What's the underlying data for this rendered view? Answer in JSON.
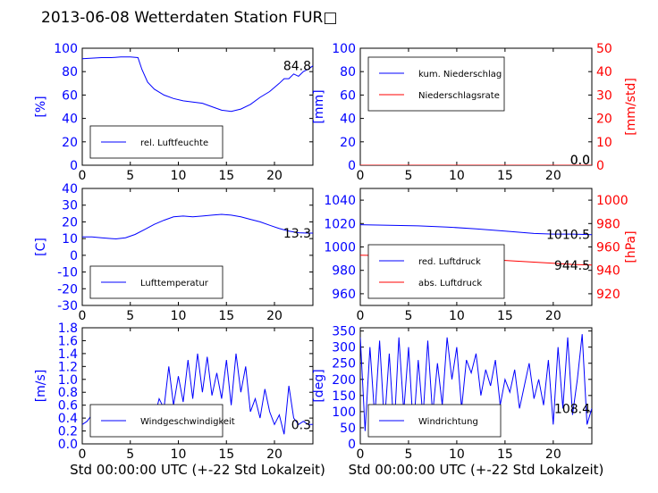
{
  "title": "2013-06-08 Wetterdaten Station FUR□",
  "colors": {
    "primary": "#0000ff",
    "secondary": "#ff0000",
    "axis": "#000000"
  },
  "chart_data": [
    {
      "id": "humidity",
      "type": "line",
      "ylabel": "[%]",
      "xlabel": "",
      "xlim": [
        0,
        24
      ],
      "ylim": [
        0,
        100
      ],
      "xticks": [
        0,
        5,
        10,
        15,
        20
      ],
      "yticks": [
        0,
        20,
        40,
        60,
        80,
        100
      ],
      "last_value_label": "84.8",
      "legend_position": "lower-left",
      "series": [
        {
          "name": "rel. Luftfeuchte",
          "x": [
            0,
            1,
            2,
            3,
            4,
            5,
            5.8,
            6.2,
            6.8,
            7.5,
            8.5,
            9.5,
            10.5,
            11.5,
            12.5,
            13.5,
            14.5,
            15.5,
            16.5,
            17.5,
            18.5,
            19.5,
            20.5,
            21,
            21.5,
            22,
            22.5,
            23,
            23.5,
            24
          ],
          "y": [
            91,
            91.5,
            92,
            92,
            92.5,
            92.5,
            92,
            82,
            71,
            65,
            60,
            57,
            55,
            54,
            53,
            50,
            47,
            46,
            48,
            52,
            58,
            63,
            70,
            74,
            74,
            78,
            76,
            80,
            82,
            85
          ]
        }
      ]
    },
    {
      "id": "precipitation",
      "type": "line",
      "ylabel": "[mm]",
      "y2label": "[mm/std]",
      "xlabel": "",
      "xlim": [
        0,
        24
      ],
      "ylim": [
        0,
        100
      ],
      "y2lim": [
        0,
        50
      ],
      "xticks": [
        0,
        5,
        10,
        15,
        20
      ],
      "yticks": [
        0,
        20,
        40,
        60,
        80,
        100
      ],
      "y2ticks": [
        0,
        10,
        20,
        30,
        40,
        50
      ],
      "last_value_labels": [
        "0.0",
        "0.0"
      ],
      "legend_position": "upper-left",
      "series": [
        {
          "name": "kum. Niederschlag",
          "axis": "left",
          "x": [
            0,
            24
          ],
          "y": [
            0,
            0
          ]
        },
        {
          "name": "Niederschlagsrate",
          "axis": "right",
          "x": [
            0,
            24
          ],
          "y": [
            0,
            0
          ]
        }
      ]
    },
    {
      "id": "temperature",
      "type": "line",
      "ylabel": "[C]",
      "xlabel": "",
      "xlim": [
        0,
        24
      ],
      "ylim": [
        -30,
        40
      ],
      "xticks": [
        0,
        5,
        10,
        15,
        20
      ],
      "yticks": [
        -30,
        -20,
        -10,
        0,
        10,
        20,
        30,
        40
      ],
      "last_value_label": "13.3",
      "legend_position": "lower-left",
      "series": [
        {
          "name": "Lufttemperatur",
          "x": [
            0,
            1,
            2,
            3,
            3.5,
            4.5,
            5.5,
            6.5,
            7.5,
            8.5,
            9.5,
            10.5,
            11.5,
            12.5,
            13.5,
            14.5,
            15.5,
            16.5,
            17.5,
            18.5,
            19.5,
            20.5,
            21.5,
            22.5,
            23.5,
            24
          ],
          "y": [
            11,
            11,
            10.5,
            10,
            9.8,
            10.5,
            12.5,
            15.5,
            18.5,
            21,
            23,
            23.5,
            23,
            23.5,
            24,
            24.5,
            24,
            23,
            21.5,
            20,
            18,
            16,
            14.5,
            13.5,
            13.3,
            13.3
          ]
        }
      ]
    },
    {
      "id": "pressure",
      "type": "line",
      "ylabel": "",
      "y2label": "[hPa]",
      "xlabel": "",
      "xlim": [
        0,
        24
      ],
      "ylim": [
        950,
        1050
      ],
      "y2lim": [
        910,
        1010
      ],
      "xticks": [
        0,
        5,
        10,
        15,
        20
      ],
      "yticks": [
        960,
        980,
        1000,
        1020,
        1040
      ],
      "y2ticks": [
        920,
        940,
        960,
        980,
        1000
      ],
      "last_value_labels": [
        "1010.5",
        "944.5"
      ],
      "legend_position": "lower-left",
      "series": [
        {
          "name": "red. Luftdruck",
          "axis": "left",
          "x": [
            0,
            3,
            6,
            9,
            12,
            15,
            18,
            20,
            22,
            24
          ],
          "y": [
            1019,
            1018.5,
            1018,
            1017,
            1015.5,
            1013.5,
            1011.5,
            1011,
            1011,
            1010.5
          ]
        },
        {
          "name": "abs. Luftdruck",
          "axis": "right",
          "x": [
            0,
            3,
            6,
            9,
            12,
            15,
            18,
            20,
            22,
            24
          ],
          "y": [
            953,
            952.5,
            952,
            951.5,
            950,
            948.5,
            947,
            946,
            945,
            944.5
          ]
        }
      ]
    },
    {
      "id": "windspeed",
      "type": "line",
      "ylabel": "[m/s]",
      "xlabel": "Std 00:00:00 UTC (+-22 Std Lokalzeit)",
      "xlim": [
        0,
        24
      ],
      "ylim": [
        0,
        1.8
      ],
      "xticks": [
        0,
        5,
        10,
        15,
        20
      ],
      "yticks": [
        0.0,
        0.2,
        0.4,
        0.6,
        0.8,
        1.0,
        1.2,
        1.4,
        1.6,
        1.8
      ],
      "last_value_label": "0.3",
      "legend_position": "lower-left",
      "series": [
        {
          "name": "Windgeschwindigkeit",
          "x": [
            0,
            0.5,
            1,
            1.5,
            2,
            2.5,
            3,
            3.5,
            4,
            4.5,
            5,
            5.5,
            6,
            6.5,
            7,
            7.5,
            8,
            8.5,
            9,
            9.5,
            10,
            10.5,
            11,
            11.5,
            12,
            12.5,
            13,
            13.5,
            14,
            14.5,
            15,
            15.5,
            16,
            16.5,
            17,
            17.5,
            18,
            18.5,
            19,
            19.5,
            20,
            20.5,
            21,
            21.5,
            22,
            22.5,
            23,
            23.5,
            24
          ],
          "y": [
            0.3,
            0.35,
            0.45,
            0.3,
            0.4,
            0.35,
            0.5,
            0.3,
            0.45,
            0.35,
            0.4,
            0.2,
            0.45,
            0.35,
            0.5,
            0.4,
            0.7,
            0.55,
            1.2,
            0.6,
            1.05,
            0.65,
            1.3,
            0.7,
            1.4,
            0.8,
            1.35,
            0.75,
            1.1,
            0.7,
            1.3,
            0.6,
            1.4,
            0.8,
            1.2,
            0.5,
            0.7,
            0.4,
            0.85,
            0.5,
            0.3,
            0.45,
            0.15,
            0.9,
            0.4,
            0.3,
            0.35,
            0.3,
            0.3
          ]
        }
      ]
    },
    {
      "id": "winddirection",
      "type": "line",
      "ylabel": "[deg]",
      "xlabel": "Std 00:00:00 UTC (+-22 Std Lokalzeit)",
      "xlim": [
        0,
        24
      ],
      "ylim": [
        0,
        360
      ],
      "xticks": [
        0,
        5,
        10,
        15,
        20
      ],
      "yticks": [
        0,
        50,
        100,
        150,
        200,
        250,
        300,
        350
      ],
      "last_value_label": "108.4",
      "legend_position": "lower-left",
      "series": [
        {
          "name": "Windrichtung",
          "x": [
            0,
            0.5,
            1,
            1.5,
            2,
            2.5,
            3,
            3.5,
            4,
            4.5,
            5,
            5.5,
            6,
            6.5,
            7,
            7.5,
            8,
            8.5,
            9,
            9.5,
            10,
            10.5,
            11,
            11.5,
            12,
            12.5,
            13,
            13.5,
            14,
            14.5,
            15,
            15.5,
            16,
            16.5,
            17,
            17.5,
            18,
            18.5,
            19,
            19.5,
            20,
            20.5,
            21,
            21.5,
            22,
            22.5,
            23,
            23.5,
            24
          ],
          "y": [
            330,
            40,
            300,
            80,
            320,
            60,
            280,
            40,
            330,
            100,
            300,
            40,
            260,
            80,
            320,
            90,
            250,
            120,
            330,
            200,
            300,
            110,
            260,
            220,
            280,
            150,
            230,
            180,
            260,
            120,
            200,
            160,
            230,
            110,
            180,
            250,
            140,
            200,
            120,
            260,
            60,
            300,
            110,
            330,
            90,
            200,
            340,
            60,
            110
          ]
        }
      ]
    }
  ]
}
